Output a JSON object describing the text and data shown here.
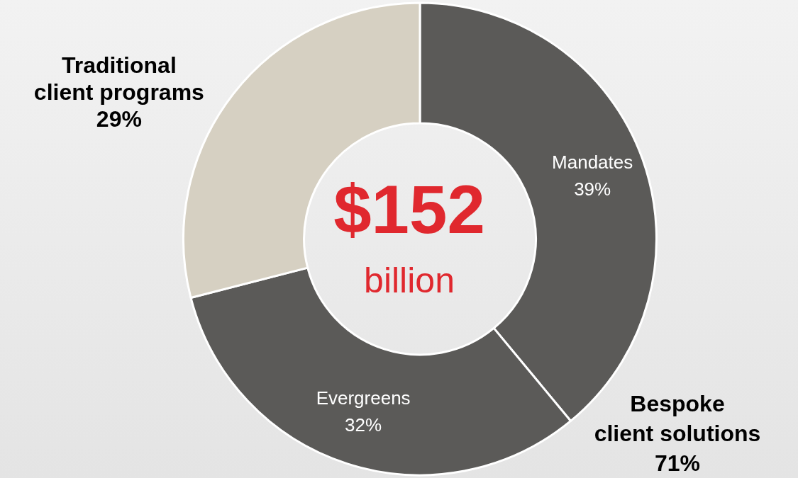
{
  "chart_data": {
    "type": "donut",
    "categories": [
      "Mandates",
      "Evergreens",
      "Traditional\nclient programs"
    ],
    "values": [
      39,
      32,
      29
    ],
    "value_labels": [
      "39%",
      "32%",
      "29%"
    ],
    "colors": [
      "#5b5a58",
      "#5b5a58",
      "#d6d0c2"
    ],
    "legend": false,
    "annotations": [
      "$152",
      "billion",
      "Bespoke\nclient solutions\n71%"
    ]
  }
}
